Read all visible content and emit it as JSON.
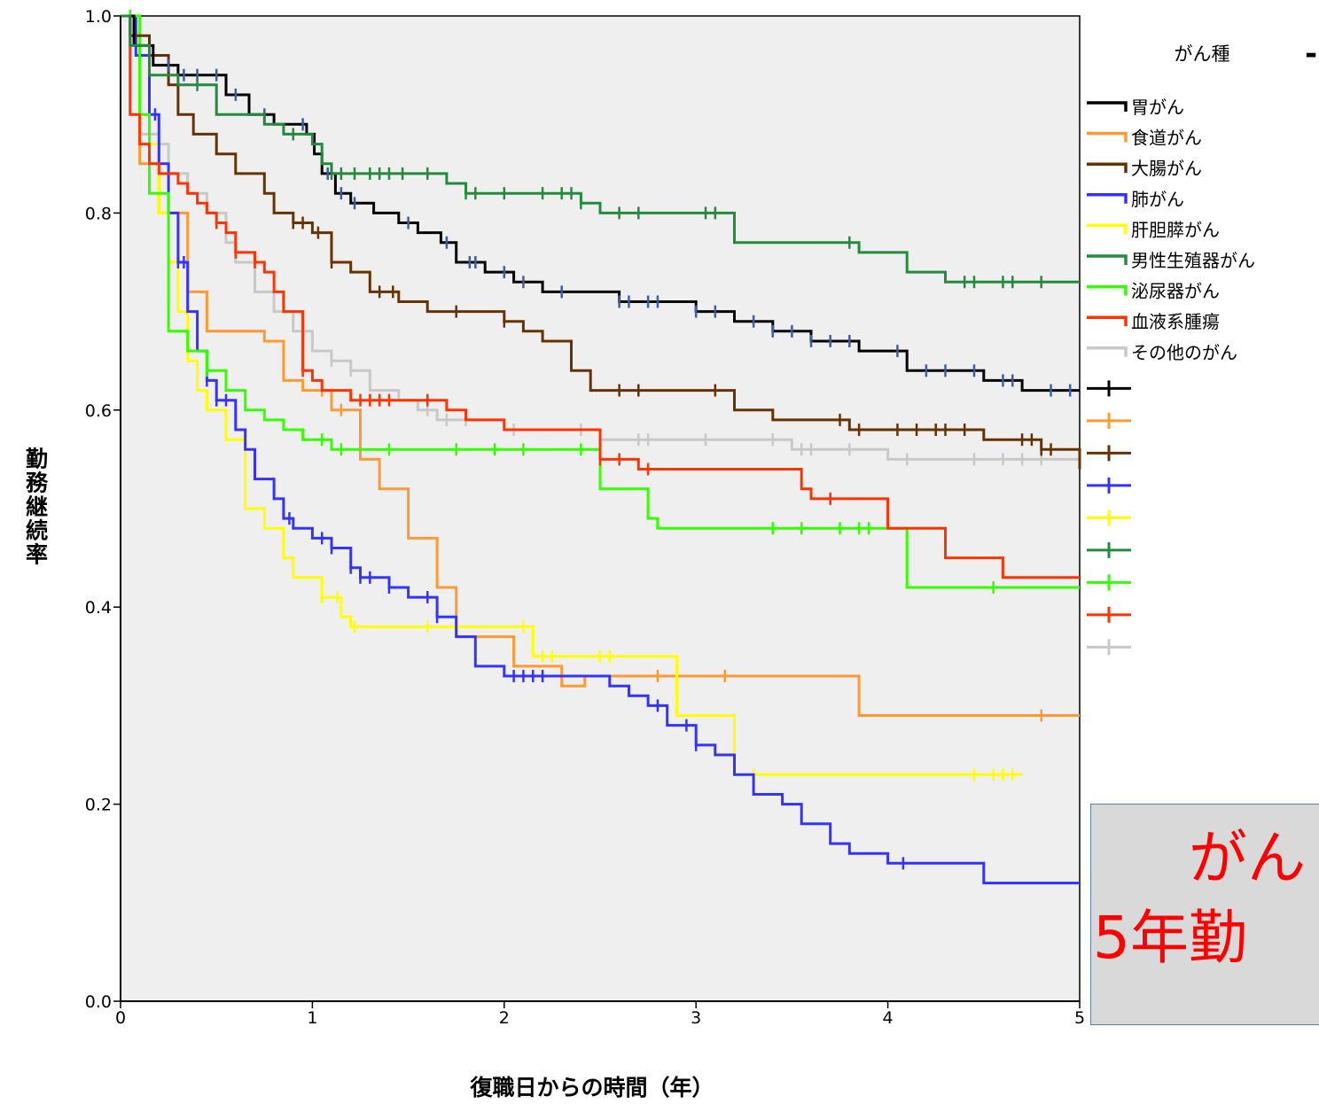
{
  "chart_data": {
    "type": "line",
    "xlabel": "復職日からの時間（年）",
    "ylabel": "勤務継続率",
    "xlim": [
      0,
      5
    ],
    "ylim": [
      0,
      1
    ],
    "xticks": [
      "0",
      "1",
      "2",
      "3",
      "4",
      "5"
    ],
    "yticks": [
      "0.0",
      "0.2",
      "0.4",
      "0.6",
      "0.8",
      "1.0"
    ],
    "legend_title": "がん種",
    "legend_placement": "right",
    "grid": false,
    "background": "#efefef",
    "series": [
      {
        "name": "胃がん",
        "color": "#000000",
        "censor_color": "#3a5fa8",
        "x": [
          0,
          0.07,
          0.17,
          0.3,
          0.55,
          0.67,
          0.8,
          0.97,
          1.01,
          1.05,
          1.12,
          1.2,
          1.32,
          1.45,
          1.55,
          1.67,
          1.75,
          1.9,
          2.05,
          2.2,
          2.4,
          2.6,
          2.8,
          3.0,
          3.2,
          3.4,
          3.6,
          3.85,
          4.1,
          4.5,
          4.7,
          5.0
        ],
        "y": [
          1.0,
          0.97,
          0.95,
          0.94,
          0.92,
          0.9,
          0.89,
          0.88,
          0.86,
          0.84,
          0.82,
          0.81,
          0.8,
          0.79,
          0.78,
          0.77,
          0.75,
          0.74,
          0.73,
          0.72,
          0.72,
          0.71,
          0.71,
          0.7,
          0.69,
          0.68,
          0.67,
          0.66,
          0.64,
          0.63,
          0.62,
          0.62
        ],
        "censored_x": [
          0.25,
          0.33,
          0.4,
          0.5,
          0.6,
          0.75,
          0.95,
          1.08,
          1.15,
          1.22,
          1.5,
          1.7,
          1.82,
          1.85,
          2.0,
          2.1,
          2.3,
          2.6,
          2.65,
          2.75,
          2.8,
          3.0,
          3.1,
          3.3,
          3.4,
          3.5,
          3.6,
          3.7,
          3.8,
          4.05,
          4.2,
          4.3,
          4.45,
          4.6,
          4.65,
          4.85,
          4.95
        ]
      },
      {
        "name": "食道がん",
        "color": "#ff9933",
        "x": [
          0,
          0.1,
          0.2,
          0.35,
          0.45,
          0.75,
          0.85,
          0.95,
          1.1,
          1.25,
          1.35,
          1.5,
          1.65,
          1.75,
          2.05,
          2.3,
          2.42,
          3.85,
          5.0
        ],
        "y": [
          1.0,
          0.85,
          0.8,
          0.72,
          0.68,
          0.67,
          0.63,
          0.62,
          0.6,
          0.55,
          0.52,
          0.47,
          0.42,
          0.37,
          0.34,
          0.32,
          0.33,
          0.29,
          0.29
        ],
        "censored_x": [
          1.05,
          1.15,
          2.8,
          3.15,
          4.8
        ]
      },
      {
        "name": "大腸がん",
        "color": "#663300",
        "x": [
          0,
          0.05,
          0.15,
          0.25,
          0.3,
          0.38,
          0.5,
          0.6,
          0.75,
          0.8,
          0.9,
          1.0,
          1.1,
          1.2,
          1.3,
          1.45,
          1.6,
          1.8,
          2.0,
          2.1,
          2.2,
          2.35,
          2.45,
          2.6,
          2.8,
          3.0,
          3.2,
          3.4,
          3.8,
          4.05,
          4.5,
          4.8,
          5.0
        ],
        "y": [
          1.0,
          0.98,
          0.96,
          0.93,
          0.9,
          0.88,
          0.86,
          0.84,
          0.82,
          0.8,
          0.79,
          0.78,
          0.75,
          0.74,
          0.72,
          0.71,
          0.7,
          0.7,
          0.69,
          0.68,
          0.67,
          0.64,
          0.62,
          0.62,
          0.62,
          0.62,
          0.6,
          0.59,
          0.58,
          0.58,
          0.57,
          0.56,
          0.54
        ],
        "censored_x": [
          0.9,
          0.95,
          1.03,
          1.1,
          1.35,
          1.42,
          1.75,
          2.0,
          2.6,
          2.7,
          3.1,
          3.75,
          3.85,
          4.05,
          4.15,
          4.25,
          4.3,
          4.4,
          4.7,
          4.75,
          4.8,
          4.85
        ]
      },
      {
        "name": "肺がん",
        "color": "#3333ff",
        "x": [
          0,
          0.08,
          0.15,
          0.2,
          0.25,
          0.3,
          0.35,
          0.4,
          0.45,
          0.5,
          0.6,
          0.65,
          0.7,
          0.8,
          0.85,
          0.9,
          1.0,
          1.1,
          1.2,
          1.25,
          1.4,
          1.5,
          1.65,
          1.75,
          1.85,
          2.0,
          2.15,
          2.55,
          2.65,
          2.75,
          2.85,
          3.0,
          3.1,
          3.2,
          3.3,
          3.45,
          3.55,
          3.7,
          3.8,
          4.0,
          4.1,
          4.5,
          5.0
        ],
        "y": [
          1.0,
          0.96,
          0.9,
          0.85,
          0.8,
          0.75,
          0.7,
          0.66,
          0.63,
          0.61,
          0.58,
          0.56,
          0.53,
          0.51,
          0.49,
          0.48,
          0.47,
          0.46,
          0.44,
          0.43,
          0.42,
          0.41,
          0.39,
          0.37,
          0.34,
          0.33,
          0.33,
          0.32,
          0.31,
          0.3,
          0.28,
          0.26,
          0.25,
          0.23,
          0.21,
          0.2,
          0.18,
          0.16,
          0.15,
          0.14,
          0.14,
          0.12,
          0.12
        ],
        "censored_x": [
          0.05,
          0.1,
          0.18,
          0.3,
          0.33,
          0.45,
          0.5,
          0.55,
          0.88,
          1.05,
          1.1,
          1.2,
          1.25,
          1.3,
          1.4,
          1.6,
          1.65,
          2.05,
          2.1,
          2.15,
          2.2,
          2.8,
          2.95,
          3.0,
          4.08
        ]
      },
      {
        "name": "肝胆膵がん",
        "color": "#ffff00",
        "x": [
          0,
          0.1,
          0.2,
          0.25,
          0.3,
          0.35,
          0.4,
          0.45,
          0.55,
          0.65,
          0.75,
          0.85,
          0.9,
          0.95,
          1.05,
          1.15,
          1.2,
          2.0,
          2.15,
          2.9,
          3.2,
          3.5,
          4.7
        ],
        "y": [
          1.0,
          0.87,
          0.8,
          0.75,
          0.7,
          0.65,
          0.62,
          0.6,
          0.57,
          0.5,
          0.48,
          0.45,
          0.43,
          0.43,
          0.41,
          0.39,
          0.38,
          0.38,
          0.35,
          0.29,
          0.23,
          0.23,
          0.23
        ],
        "censored_x": [
          0.15,
          1.05,
          1.13,
          1.22,
          1.6,
          2.1,
          2.2,
          2.25,
          2.5,
          2.55,
          3.3,
          4.45,
          4.55,
          4.6,
          4.65
        ]
      },
      {
        "name": "男性生殖器がん",
        "color": "#228b3c",
        "x": [
          0,
          0.05,
          0.15,
          0.3,
          0.5,
          0.75,
          0.85,
          1.0,
          1.05,
          1.1,
          1.5,
          1.7,
          1.8,
          2.0,
          2.4,
          2.5,
          3.0,
          3.2,
          3.5,
          3.85,
          4.1,
          4.3,
          5.0
        ],
        "y": [
          1.0,
          0.97,
          0.94,
          0.93,
          0.9,
          0.89,
          0.88,
          0.87,
          0.85,
          0.84,
          0.84,
          0.83,
          0.82,
          0.82,
          0.81,
          0.8,
          0.8,
          0.77,
          0.77,
          0.76,
          0.74,
          0.73,
          0.73
        ],
        "censored_x": [
          0.4,
          0.9,
          1.1,
          1.15,
          1.22,
          1.3,
          1.35,
          1.4,
          1.47,
          1.6,
          1.8,
          1.85,
          2.0,
          2.2,
          2.3,
          2.35,
          2.4,
          2.6,
          2.7,
          3.05,
          3.1,
          3.8,
          4.4,
          4.45,
          4.6,
          4.65,
          4.8
        ]
      },
      {
        "name": "泌尿器がん",
        "color": "#33ff00",
        "x": [
          0,
          0.1,
          0.15,
          0.25,
          0.35,
          0.45,
          0.55,
          0.65,
          0.75,
          0.85,
          0.95,
          1.1,
          1.2,
          1.5,
          2.0,
          2.5,
          2.75,
          2.8,
          3.2,
          3.6,
          4.05,
          4.1,
          5.0
        ],
        "y": [
          1.0,
          0.9,
          0.82,
          0.68,
          0.66,
          0.64,
          0.62,
          0.6,
          0.59,
          0.58,
          0.57,
          0.56,
          0.56,
          0.56,
          0.56,
          0.52,
          0.49,
          0.48,
          0.48,
          0.48,
          0.48,
          0.42,
          0.42
        ],
        "censored_x": [
          0.05,
          0.45,
          1.05,
          1.15,
          1.4,
          1.75,
          1.95,
          2.1,
          2.4,
          3.4,
          3.55,
          3.75,
          3.85,
          3.9,
          4.55
        ]
      },
      {
        "name": "血液系腫瘍",
        "color": "#ff3300",
        "x": [
          0,
          0.05,
          0.1,
          0.15,
          0.2,
          0.3,
          0.35,
          0.4,
          0.45,
          0.5,
          0.55,
          0.6,
          0.7,
          0.75,
          0.8,
          0.85,
          0.95,
          1.0,
          1.05,
          1.2,
          1.7,
          1.8,
          2.0,
          2.5,
          2.7,
          2.95,
          3.25,
          3.5,
          3.55,
          3.6,
          3.75,
          4.0,
          4.3,
          4.6,
          5.0
        ],
        "y": [
          1.0,
          0.9,
          0.87,
          0.85,
          0.84,
          0.83,
          0.82,
          0.81,
          0.8,
          0.79,
          0.78,
          0.76,
          0.75,
          0.74,
          0.72,
          0.7,
          0.64,
          0.63,
          0.62,
          0.61,
          0.6,
          0.59,
          0.58,
          0.55,
          0.54,
          0.54,
          0.54,
          0.54,
          0.52,
          0.51,
          0.51,
          0.48,
          0.45,
          0.43,
          0.43
        ],
        "censored_x": [
          0.5,
          0.6,
          0.7,
          0.95,
          1.25,
          1.3,
          1.35,
          1.4,
          1.6,
          2.5,
          2.6,
          2.75,
          3.7
        ]
      },
      {
        "name": "その他のがん",
        "color": "#c8c8c8",
        "x": [
          0,
          0.05,
          0.1,
          0.2,
          0.25,
          0.35,
          0.45,
          0.55,
          0.6,
          0.7,
          0.8,
          0.9,
          1.0,
          1.1,
          1.2,
          1.3,
          1.45,
          1.55,
          1.65,
          1.8,
          2.0,
          2.2,
          2.5,
          3.0,
          3.5,
          4.0,
          5.0
        ],
        "y": [
          1.0,
          0.9,
          0.88,
          0.87,
          0.84,
          0.82,
          0.8,
          0.77,
          0.75,
          0.72,
          0.7,
          0.68,
          0.66,
          0.65,
          0.64,
          0.62,
          0.61,
          0.6,
          0.59,
          0.59,
          0.58,
          0.58,
          0.57,
          0.57,
          0.56,
          0.55,
          0.55
        ],
        "censored_x": [
          0.2,
          1.1,
          1.2,
          1.6,
          1.7,
          1.8,
          2.05,
          2.4,
          2.5,
          2.7,
          2.75,
          3.05,
          3.4,
          3.55,
          3.6,
          3.8,
          4.1,
          4.45,
          4.6,
          4.7,
          4.8
        ]
      }
    ]
  },
  "legend_partial_mark": "-",
  "note": {
    "line1": "がん",
    "line2": "5年勤"
  }
}
